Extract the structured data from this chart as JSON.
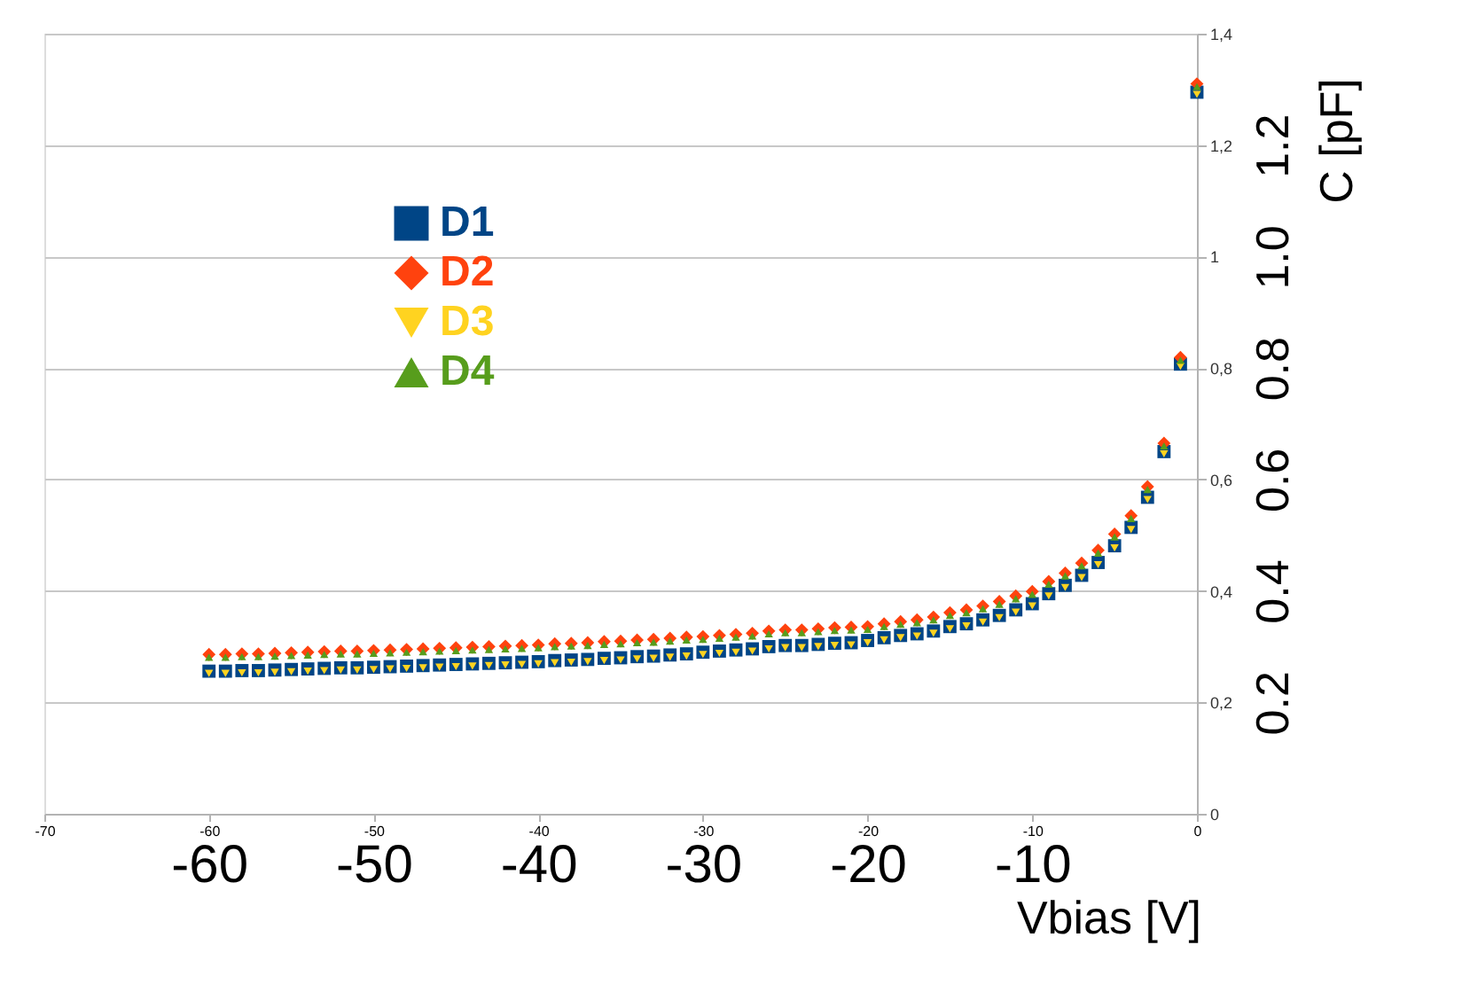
{
  "chart_data": {
    "type": "scatter",
    "xlabel": "Vbias [V]",
    "y2label": "C [pF]",
    "x": [
      -60,
      -59,
      -58,
      -57,
      -56,
      -55,
      -54,
      -53,
      -52,
      -51,
      -50,
      -49,
      -48,
      -47,
      -46,
      -45,
      -44,
      -43,
      -42,
      -41,
      -40,
      -39,
      -38,
      -37,
      -36,
      -35,
      -34,
      -33,
      -32,
      -31,
      -30,
      -29,
      -28,
      -27,
      -26,
      -25,
      -24,
      -23,
      -22,
      -21,
      -20,
      -19,
      -18,
      -17,
      -16,
      -15,
      -14,
      -13,
      -12,
      -11,
      -10,
      -9,
      -8,
      -7,
      -6,
      -5,
      -4,
      -3,
      -2,
      -1,
      0
    ],
    "series": [
      {
        "name": "D1",
        "color": "#004586",
        "marker": "square",
        "values": [
          0.256,
          0.256,
          0.257,
          0.257,
          0.258,
          0.259,
          0.26,
          0.261,
          0.262,
          0.262,
          0.263,
          0.264,
          0.265,
          0.266,
          0.267,
          0.268,
          0.269,
          0.27,
          0.271,
          0.272,
          0.273,
          0.275,
          0.276,
          0.277,
          0.279,
          0.28,
          0.282,
          0.283,
          0.285,
          0.287,
          0.29,
          0.292,
          0.294,
          0.296,
          0.3,
          0.302,
          0.302,
          0.304,
          0.306,
          0.307,
          0.311,
          0.316,
          0.32,
          0.323,
          0.328,
          0.336,
          0.341,
          0.348,
          0.356,
          0.366,
          0.377,
          0.395,
          0.41,
          0.428,
          0.451,
          0.481,
          0.514,
          0.568,
          0.65,
          0.807,
          1.295
        ]
      },
      {
        "name": "D2",
        "color": "#ff420e",
        "marker": "diamond",
        "values": [
          0.286,
          0.286,
          0.287,
          0.287,
          0.288,
          0.289,
          0.29,
          0.291,
          0.292,
          0.292,
          0.293,
          0.294,
          0.295,
          0.296,
          0.297,
          0.298,
          0.299,
          0.3,
          0.301,
          0.302,
          0.303,
          0.305,
          0.306,
          0.307,
          0.309,
          0.31,
          0.312,
          0.313,
          0.315,
          0.317,
          0.318,
          0.32,
          0.322,
          0.324,
          0.328,
          0.33,
          0.33,
          0.332,
          0.334,
          0.335,
          0.336,
          0.341,
          0.345,
          0.348,
          0.353,
          0.361,
          0.366,
          0.373,
          0.381,
          0.391,
          0.399,
          0.417,
          0.432,
          0.45,
          0.473,
          0.502,
          0.535,
          0.587,
          0.665,
          0.819,
          1.31
        ]
      },
      {
        "name": "D3",
        "color": "#ffd320",
        "marker": "triangle-down",
        "values": [
          0.252,
          0.252,
          0.253,
          0.253,
          0.254,
          0.255,
          0.256,
          0.257,
          0.258,
          0.258,
          0.259,
          0.26,
          0.261,
          0.262,
          0.263,
          0.264,
          0.265,
          0.266,
          0.267,
          0.268,
          0.269,
          0.271,
          0.272,
          0.273,
          0.275,
          0.276,
          0.278,
          0.279,
          0.281,
          0.283,
          0.286,
          0.288,
          0.29,
          0.292,
          0.296,
          0.298,
          0.298,
          0.3,
          0.302,
          0.303,
          0.307,
          0.312,
          0.316,
          0.319,
          0.324,
          0.332,
          0.337,
          0.344,
          0.352,
          0.362,
          0.373,
          0.391,
          0.406,
          0.424,
          0.447,
          0.477,
          0.51,
          0.564,
          0.646,
          0.803,
          1.291
        ]
      },
      {
        "name": "D4",
        "color": "#579d1c",
        "marker": "triangle",
        "values": [
          0.281,
          0.281,
          0.282,
          0.282,
          0.283,
          0.284,
          0.285,
          0.286,
          0.287,
          0.287,
          0.288,
          0.289,
          0.29,
          0.291,
          0.292,
          0.293,
          0.294,
          0.295,
          0.296,
          0.297,
          0.298,
          0.3,
          0.301,
          0.302,
          0.304,
          0.305,
          0.307,
          0.308,
          0.31,
          0.312,
          0.313,
          0.315,
          0.317,
          0.319,
          0.323,
          0.325,
          0.325,
          0.327,
          0.329,
          0.33,
          0.331,
          0.336,
          0.34,
          0.343,
          0.348,
          0.356,
          0.361,
          0.368,
          0.376,
          0.386,
          0.394,
          0.412,
          0.427,
          0.445,
          0.468,
          0.497,
          0.53,
          0.582,
          0.66,
          0.814,
          1.305
        ]
      }
    ],
    "xlim": [
      -70,
      0
    ],
    "xticks": [
      -70,
      -60,
      -50,
      -40,
      -30,
      -20,
      -10,
      0
    ],
    "x2lim": [
      -70,
      0
    ],
    "x2ticks": [
      -60,
      -50,
      -40,
      -30,
      -20,
      -10
    ],
    "ylim": [
      0,
      1.4
    ],
    "yticks": [
      {
        "value": 0,
        "label": "0"
      },
      {
        "value": 0.2,
        "label": "0,2"
      },
      {
        "value": 0.4,
        "label": "0,4"
      },
      {
        "value": 0.6,
        "label": "0,6"
      },
      {
        "value": 0.8,
        "label": "0,8"
      },
      {
        "value": 1,
        "label": "1"
      },
      {
        "value": 1.2,
        "label": "1,2"
      },
      {
        "value": 1.4,
        "label": "1,4"
      }
    ],
    "y2lim": [
      0,
      1.4
    ],
    "y2ticks": [
      {
        "value": 0.2,
        "label": "0.2"
      },
      {
        "value": 0.4,
        "label": "0.4"
      },
      {
        "value": 0.6,
        "label": "0.6"
      },
      {
        "value": 0.8,
        "label": "0.8"
      },
      {
        "value": 1.0,
        "label": "1.0"
      },
      {
        "value": 1.2,
        "label": "1.2"
      }
    ],
    "grid": "y",
    "legend": "top left"
  }
}
